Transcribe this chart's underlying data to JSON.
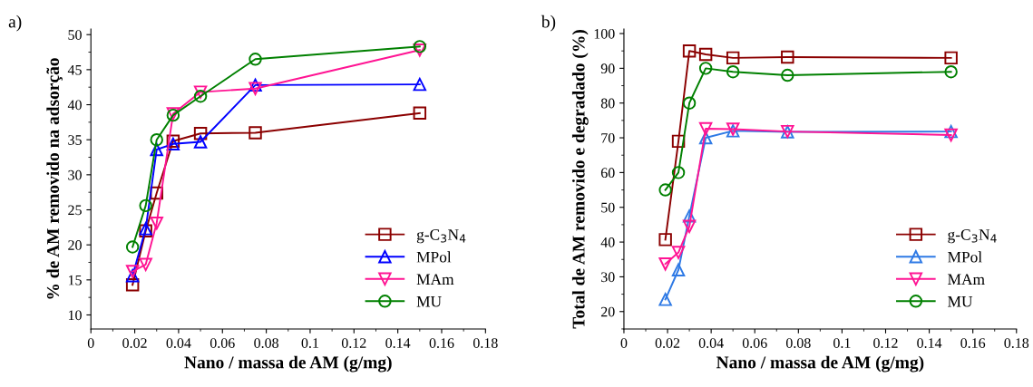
{
  "chart_data": [
    {
      "type": "line",
      "annotations": [
        "a)"
      ],
      "xlabel": "Nano / massa de AM (g/mg)",
      "ylabel": "% de AM removido na adsorção",
      "x": [
        0.019,
        0.025,
        0.03,
        0.0375,
        0.05,
        0.075,
        0.15
      ],
      "series": [
        {
          "name": "g-C$_{3}$N$_{4}$",
          "color": "#8b0000",
          "marker": "square",
          "values": [
            14.3,
            22.0,
            27.4,
            34.8,
            35.9,
            36.0,
            38.8
          ]
        },
        {
          "name": "MPol",
          "color": "#0000ff",
          "marker": "triangle",
          "values": [
            15.6,
            22.3,
            33.6,
            34.4,
            34.7,
            42.8,
            42.9
          ]
        },
        {
          "name": "MAm",
          "color": "#ff1493",
          "marker": "triangle_down",
          "values": [
            16.2,
            17.2,
            23.1,
            38.7,
            41.8,
            42.3,
            47.8
          ]
        },
        {
          "name": "MU",
          "color": "#008000",
          "marker": "circle",
          "values": [
            19.7,
            25.6,
            35.0,
            38.5,
            41.2,
            46.5,
            48.3
          ]
        }
      ],
      "xlim": [
        0,
        0.18
      ],
      "xticks": [
        0,
        0.02,
        0.04,
        0.06,
        0.08,
        0.1,
        0.12,
        0.14,
        0.16,
        0.18
      ],
      "ylim": [
        8,
        50.8
      ],
      "yticks": [
        10,
        15,
        20,
        25,
        30,
        35,
        40,
        45,
        50
      ],
      "grid": false,
      "legend": "bottom right"
    },
    {
      "type": "line",
      "annotations": [
        "b)"
      ],
      "xlabel": "Nano / massa de AM (g/mg)",
      "ylabel": "Total de AM removido e degradado (%)",
      "x": [
        0.019,
        0.025,
        0.03,
        0.0375,
        0.05,
        0.075,
        0.15
      ],
      "series": [
        {
          "name": "g-C$_{3}$N$_{4}$",
          "color": "#8b0000",
          "marker": "square",
          "values": [
            40.7,
            69,
            95,
            94,
            93,
            93.2,
            93
          ]
        },
        {
          "name": "MPol",
          "color": "#2f7ae5",
          "marker": "triangle",
          "values": [
            23.5,
            32,
            47.5,
            70,
            72,
            71.7,
            71.8
          ]
        },
        {
          "name": "MAm",
          "color": "#ff1493",
          "marker": "triangle_down",
          "values": [
            33.7,
            37,
            44.5,
            72.6,
            72.5,
            71.8,
            70.8
          ]
        },
        {
          "name": "MU",
          "color": "#008000",
          "marker": "circle",
          "values": [
            55,
            60,
            80,
            90,
            89,
            88,
            89
          ]
        }
      ],
      "xlim": [
        0,
        0.18
      ],
      "xticks": [
        0,
        0.02,
        0.04,
        0.06,
        0.08,
        0.1,
        0.12,
        0.14,
        0.16,
        0.18
      ],
      "ylim": [
        15,
        101.3
      ],
      "yticks": [
        20,
        30,
        40,
        50,
        60,
        70,
        80,
        90,
        100
      ],
      "grid": false,
      "legend": "bottom right"
    }
  ]
}
